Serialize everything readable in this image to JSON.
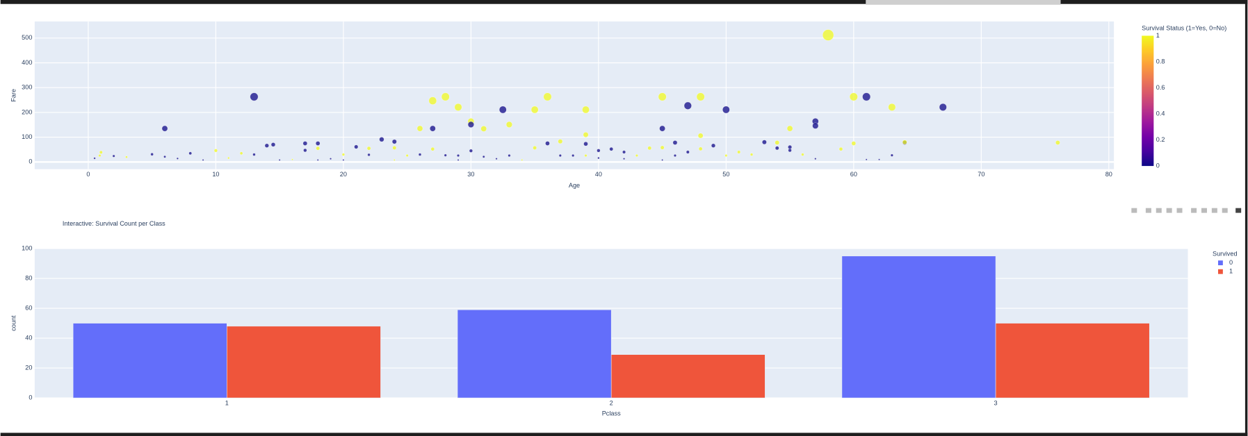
{
  "chart_data": [
    {
      "type": "scatter",
      "xlabel": "Age",
      "ylabel": "Fare",
      "xlim": [
        -4.2,
        80.4
      ],
      "ylim": [
        -29,
        567
      ],
      "xticks": [
        0,
        10,
        20,
        30,
        40,
        50,
        60,
        70,
        80
      ],
      "yticks": [
        0,
        100,
        200,
        300,
        400,
        500
      ],
      "grid": true,
      "colorbar_title": "Survival Status (1=Yes, 0=No)",
      "clim": [
        0,
        1
      ],
      "cticks": [
        0,
        0.2,
        0.4,
        0.6,
        0.8,
        1
      ],
      "colorscale": [
        "#0d0887",
        "#46039f",
        "#7201a8",
        "#9c179e",
        "#bd3786",
        "#d8576b",
        "#ed7953",
        "#fb9f3a",
        "#fdca26",
        "#f0f921"
      ],
      "x": [
        13,
        6,
        27,
        28,
        29,
        30,
        30,
        31,
        32.5,
        33,
        35,
        36,
        27,
        26,
        39,
        39,
        45,
        45,
        47,
        48,
        48,
        50,
        55,
        57,
        57,
        58,
        60,
        61,
        63,
        67,
        76,
        46,
        37,
        23,
        24,
        17,
        18,
        14,
        14.5,
        21,
        24,
        22,
        18,
        17,
        10,
        12,
        5,
        8,
        1,
        2,
        0.9,
        0.5,
        3,
        6,
        7,
        9,
        11,
        13,
        15,
        16,
        19,
        20,
        22,
        25,
        26,
        28,
        29,
        30,
        32,
        33,
        35,
        36,
        37,
        38,
        39,
        40,
        41,
        42,
        43,
        44,
        45,
        47,
        48,
        49,
        50,
        51,
        53,
        54,
        54,
        55,
        55,
        56,
        59,
        60,
        62,
        63,
        64,
        64,
        39,
        42,
        27,
        34,
        31,
        29,
        40,
        45,
        52,
        24,
        20,
        18,
        46,
        57,
        61
      ],
      "values": [
        263,
        135,
        247,
        263,
        221,
        164,
        151,
        134,
        211,
        151,
        211,
        263,
        135,
        135,
        211,
        110,
        263,
        135,
        227,
        263,
        106,
        211,
        135,
        164,
        146,
        512,
        263,
        263,
        221,
        221,
        78,
        78,
        83,
        91,
        82,
        75,
        75,
        66,
        70,
        61,
        57,
        55,
        55,
        47,
        46,
        35,
        31,
        35,
        39,
        24,
        26,
        15,
        20,
        21,
        14,
        8,
        16,
        30,
        8,
        10,
        13,
        30,
        29,
        26,
        30,
        27,
        8,
        45,
        13,
        26,
        57,
        75,
        26,
        26,
        73,
        46,
        52,
        40,
        26,
        56,
        58,
        40,
        53,
        66,
        26,
        40,
        80,
        78,
        56,
        60,
        47,
        30,
        52,
        75,
        10,
        27,
        78,
        80,
        26,
        13,
        52,
        8,
        21,
        26,
        16,
        8,
        30,
        8,
        8,
        8,
        26,
        13,
        10
      ],
      "color_values": [
        0,
        0,
        1,
        1,
        1,
        1,
        0,
        1,
        0,
        1,
        1,
        1,
        0,
        1,
        1,
        1,
        1,
        0,
        0,
        1,
        1,
        0,
        1,
        0,
        0,
        1,
        1,
        0,
        1,
        0,
        1,
        0,
        1,
        0,
        0,
        0,
        0,
        0,
        0,
        0,
        1,
        1,
        1,
        0,
        1,
        1,
        0,
        0,
        1,
        0,
        1,
        0,
        1,
        0,
        0,
        0,
        1,
        0,
        0,
        1,
        0,
        1,
        0,
        1,
        0,
        0,
        0,
        0,
        0,
        0,
        1,
        0,
        0,
        0,
        0,
        0,
        0,
        0,
        1,
        1,
        1,
        0,
        1,
        0,
        1,
        1,
        0,
        1,
        0,
        0,
        0,
        1,
        1,
        1,
        0,
        0,
        0,
        1,
        1,
        0,
        1,
        1,
        0,
        0,
        0,
        0,
        1,
        1,
        0,
        0,
        0,
        0,
        0
      ]
    },
    {
      "type": "bar",
      "title": "Interactive: Survival Count per Class",
      "xlabel": "Pclass",
      "ylabel": "count",
      "categories": [
        "1",
        "2",
        "3"
      ],
      "ylim": [
        0,
        100
      ],
      "yticks": [
        0,
        20,
        40,
        60,
        80,
        100
      ],
      "grid": true,
      "legend_title": "Survived",
      "legend": "top-right",
      "series": [
        {
          "name": "0",
          "color": "#636efa",
          "values": [
            50,
            59,
            95
          ]
        },
        {
          "name": "1",
          "color": "#ef553b",
          "values": [
            48,
            29,
            50
          ]
        }
      ]
    }
  ]
}
